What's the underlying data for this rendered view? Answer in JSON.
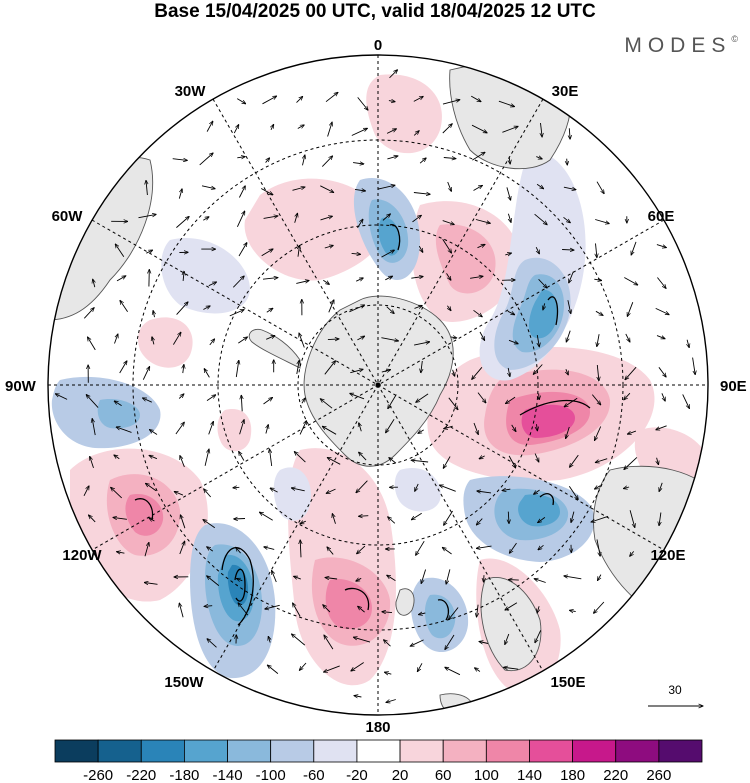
{
  "title": "Base 15/04/2025 00 UTC, valid 18/04/2025 12 UTC",
  "logo": "MODES",
  "logo_mark": "©",
  "longitude_labels": [
    "0",
    "30E",
    "60E",
    "90E",
    "120E",
    "150E",
    "180",
    "150W",
    "120W",
    "90W",
    "60W",
    "30W"
  ],
  "vector_reference": "30",
  "colorbar": {
    "ticks": [
      "-260",
      "-220",
      "-180",
      "-140",
      "-100",
      "-60",
      "-20",
      "20",
      "60",
      "100",
      "140",
      "180",
      "220",
      "260"
    ],
    "colors": [
      "#0b3d5e",
      "#15618e",
      "#2a84b8",
      "#56a4cf",
      "#8ab9dc",
      "#b8cbe6",
      "#e0e2f2",
      "#ffffff",
      "#f8d5dc",
      "#f4b1c1",
      "#ef86a8",
      "#e54f9a",
      "#c7188b",
      "#8e0c7f",
      "#550c6e"
    ]
  },
  "colors": {
    "land": "#e7e7e7",
    "coast": "#555555",
    "grid": "#000000"
  }
}
